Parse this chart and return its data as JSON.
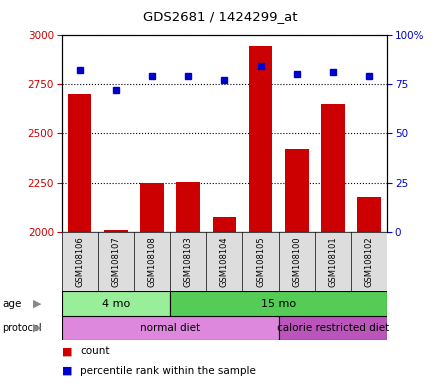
{
  "title": "GDS2681 / 1424299_at",
  "samples": [
    "GSM108106",
    "GSM108107",
    "GSM108108",
    "GSM108103",
    "GSM108104",
    "GSM108105",
    "GSM108100",
    "GSM108101",
    "GSM108102"
  ],
  "counts": [
    2700,
    2010,
    2250,
    2255,
    2075,
    2940,
    2420,
    2650,
    2175
  ],
  "percentile": [
    82,
    72,
    79,
    79,
    77,
    84,
    80,
    81,
    79
  ],
  "ylim_left": [
    2000,
    3000
  ],
  "ylim_right": [
    0,
    100
  ],
  "yticks_left": [
    2000,
    2250,
    2500,
    2750,
    3000
  ],
  "yticks_right": [
    0,
    25,
    50,
    75,
    100
  ],
  "bar_color": "#cc0000",
  "dot_color": "#0000cc",
  "bar_bottom": 2000,
  "age_groups": [
    {
      "label": "4 mo",
      "start": 0,
      "end": 3,
      "color": "#99ee99"
    },
    {
      "label": "15 mo",
      "start": 3,
      "end": 9,
      "color": "#55cc55"
    }
  ],
  "protocol_groups": [
    {
      "label": "normal diet",
      "start": 0,
      "end": 6,
      "color": "#dd88dd"
    },
    {
      "label": "calorie restricted diet",
      "start": 6,
      "end": 9,
      "color": "#bb55bb"
    }
  ],
  "grid_color": "#000000",
  "tick_label_color_left": "#cc0000",
  "tick_label_color_right": "#0000cc",
  "legend_items": [
    {
      "color": "#cc0000",
      "label": "count"
    },
    {
      "color": "#0000cc",
      "label": "percentile rank within the sample"
    }
  ],
  "bg_color": "#ffffff",
  "plot_bg": "#ffffff"
}
